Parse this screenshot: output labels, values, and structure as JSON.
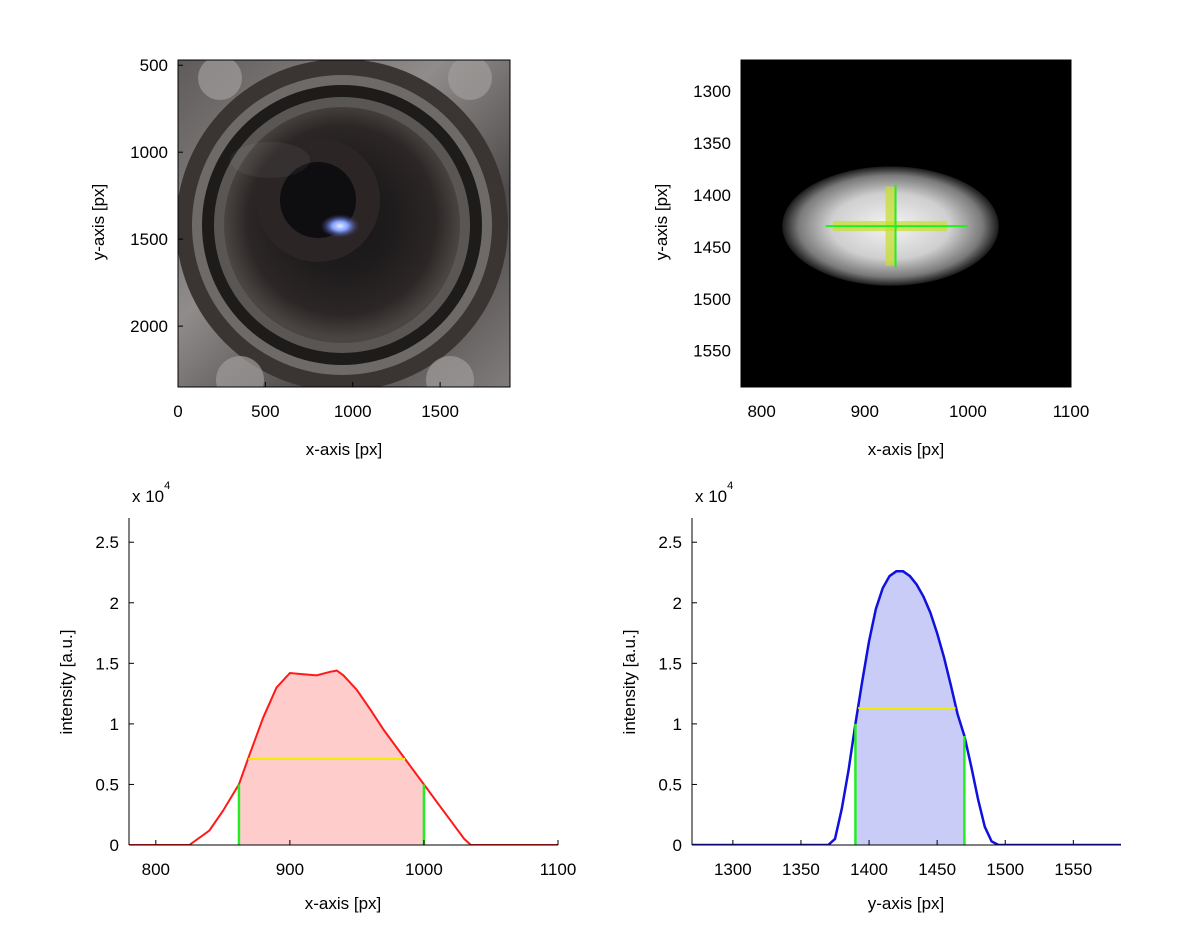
{
  "chart_data": [
    {
      "type": "image",
      "id": "camera",
      "xlabel": "x-axis [px]",
      "ylabel": "y-axis [px]",
      "xlim": [
        0,
        1900
      ],
      "ylim": [
        2350,
        470
      ],
      "xticks": [
        0,
        500,
        1000,
        1500
      ],
      "yticks": [
        500,
        1000,
        1500,
        2000
      ],
      "colors": {
        "lens_body": "#26221f",
        "lens_metal": "#8a8886",
        "spot": "#7fa0ff"
      }
    },
    {
      "type": "image",
      "id": "spot",
      "xlabel": "x-axis [px]",
      "ylabel": "y-axis [px]",
      "xlim": [
        780,
        1100
      ],
      "ylim": [
        1585,
        1270
      ],
      "xticks": [
        800,
        900,
        1000,
        1100
      ],
      "yticks": [
        1300,
        1350,
        1400,
        1450,
        1500,
        1550
      ],
      "spot_center": [
        925,
        1430
      ],
      "horizontal_fwhm": [
        862,
        1000
      ],
      "vertical_fwhm": [
        1390,
        1470
      ],
      "horizontal_band": [
        869,
        980
      ],
      "vertical_band": [
        1392,
        1468
      ],
      "colors": {
        "fwhm_line": "#22ee22",
        "band": "#c8dd33"
      }
    },
    {
      "type": "area",
      "id": "x-profile",
      "xlabel": "x-axis [px]",
      "ylabel": "intensity [a.u.]",
      "multiplier": "x 10",
      "multiplier_exp": "4",
      "xlim": [
        780,
        1100
      ],
      "ylim": [
        0,
        2.7
      ],
      "xticks": [
        800,
        900,
        1000,
        1100
      ],
      "yticks": [
        0,
        0.5,
        1,
        1.5,
        2,
        2.5
      ],
      "ytick_labels": [
        "0",
        "0.5",
        "1",
        "1.5",
        "2",
        "2.5"
      ],
      "x": [
        780,
        825,
        840,
        850,
        862,
        870,
        880,
        890,
        900,
        910,
        920,
        930,
        935,
        940,
        950,
        960,
        970,
        980,
        990,
        1000,
        1010,
        1020,
        1030,
        1035,
        1100
      ],
      "y": [
        0,
        0,
        0.12,
        0.28,
        0.5,
        0.75,
        1.05,
        1.3,
        1.42,
        1.41,
        1.4,
        1.43,
        1.44,
        1.4,
        1.28,
        1.12,
        0.95,
        0.8,
        0.65,
        0.5,
        0.35,
        0.2,
        0.05,
        0,
        0
      ],
      "fwhm": [
        862,
        1000
      ],
      "half_max": 0.71,
      "colors": {
        "line": "#ff1a1a",
        "fill": "#ffcccc",
        "fwhm_line": "#22ee22",
        "half_max_line": "#eeee00"
      }
    },
    {
      "type": "area",
      "id": "y-profile",
      "xlabel": "y-axis [px]",
      "ylabel": "intensity [a.u.]",
      "multiplier": "x 10",
      "multiplier_exp": "4",
      "xlim": [
        1270,
        1585
      ],
      "ylim": [
        0,
        2.7
      ],
      "xticks": [
        1300,
        1350,
        1400,
        1450,
        1500,
        1550
      ],
      "yticks": [
        0,
        0.5,
        1,
        1.5,
        2,
        2.5
      ],
      "ytick_labels": [
        "0",
        "0.5",
        "1",
        "1.5",
        "2",
        "2.5"
      ],
      "x": [
        1270,
        1370,
        1375,
        1380,
        1385,
        1390,
        1395,
        1400,
        1405,
        1410,
        1415,
        1420,
        1425,
        1430,
        1435,
        1440,
        1445,
        1450,
        1455,
        1460,
        1465,
        1470,
        1475,
        1480,
        1485,
        1490,
        1495,
        1585
      ],
      "y": [
        0,
        0,
        0.05,
        0.3,
        0.62,
        1.0,
        1.35,
        1.68,
        1.95,
        2.12,
        2.22,
        2.26,
        2.26,
        2.22,
        2.15,
        2.05,
        1.92,
        1.75,
        1.55,
        1.32,
        1.08,
        0.9,
        0.65,
        0.38,
        0.15,
        0.03,
        0,
        0
      ],
      "fwhm": [
        1390,
        1470
      ],
      "half_max": 1.13,
      "colors": {
        "line": "#1111dd",
        "fill": "#c8ccf7",
        "fwhm_line": "#22ee22",
        "half_max_line": "#eeee00"
      }
    }
  ]
}
